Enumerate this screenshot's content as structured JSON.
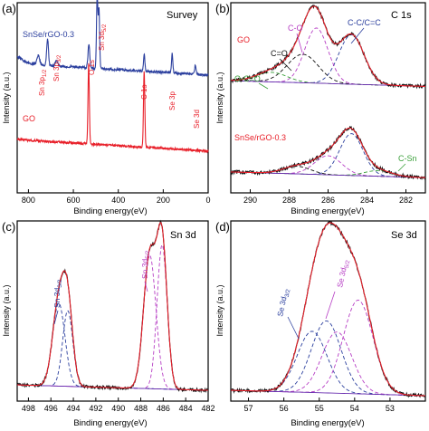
{
  "colors": {
    "red": "#e8202a",
    "blue": "#2b3f9e",
    "black": "#111111",
    "magenta": "#b63dc4",
    "green": "#3aa03a",
    "purple": "#6a2fb0"
  },
  "chart_data": [
    {
      "type": "line",
      "panel_label": "(a)",
      "title": "Survey",
      "xlabel": "Binding energy(eV)",
      "ylabel": "Intensity (a.u.)",
      "xlim": [
        0,
        850
      ],
      "x_reversed": true,
      "x_ticks": [
        "800",
        "600",
        "400",
        "200",
        "0"
      ],
      "series": [
        {
          "name": "SnSe/rGO-0.3",
          "color": "blue",
          "baseline": 0.62,
          "peaks": [
            {
              "x": 880,
              "h": 0.05,
              "w": 40
            },
            {
              "x": 756,
              "h": 0.05,
              "w": 6
            },
            {
              "x": 715,
              "h": 0.14,
              "w": 4
            },
            {
              "x": 675,
              "h": 0.025,
              "w": 6
            },
            {
              "x": 531,
              "h": 0.12,
              "w": 4
            },
            {
              "x": 494,
              "h": 0.38,
              "w": 3
            },
            {
              "x": 486,
              "h": 0.31,
              "w": 3
            },
            {
              "x": 285,
              "h": 0.09,
              "w": 3
            },
            {
              "x": 160,
              "h": 0.1,
              "w": 3
            },
            {
              "x": 57,
              "h": 0.05,
              "w": 3
            }
          ]
        },
        {
          "name": "GO",
          "color": "red",
          "baseline": 0.22,
          "peaks": [
            {
              "x": 980,
              "h": 0.04,
              "w": 60
            },
            {
              "x": 532,
              "h": 0.42,
              "w": 3
            },
            {
              "x": 285,
              "h": 0.4,
              "w": 3
            }
          ]
        }
      ],
      "annotations": [
        {
          "text": "SnSe/rGO-0.3",
          "color": "blue"
        },
        {
          "text": "GO",
          "color": "red"
        },
        {
          "text": "Sn 3p",
          "sub": "1/2",
          "color": "red",
          "x": 756
        },
        {
          "text": "Sn 3p",
          "sub": "3/2",
          "color": "red",
          "x": 715
        },
        {
          "text": "Sn 3d",
          "sub": "5/2",
          "color": "red",
          "x": 494
        },
        {
          "text": "O 1s",
          "color": "red",
          "x": 531
        },
        {
          "text": "C 1s",
          "color": "red",
          "x": 285
        },
        {
          "text": "Se 3p",
          "color": "red",
          "x": 160
        },
        {
          "text": "Se 3d",
          "color": "red",
          "x": 57
        }
      ]
    },
    {
      "type": "line",
      "panel_label": "(b)",
      "title": "C 1s",
      "xlabel": "Binding energy(eV)",
      "ylabel": "Intensity (a.u.)",
      "xlim": [
        281,
        291
      ],
      "x_reversed": true,
      "x_ticks": [
        "290",
        "288",
        "286",
        "284",
        "282"
      ],
      "upper": {
        "sample": "GO",
        "baseline": 0.56,
        "components": [
          {
            "name": "C-C/C=C",
            "center": 284.8,
            "height": 0.26,
            "width": 0.65
          },
          {
            "name": "C-O",
            "center": 286.6,
            "height": 0.29,
            "width": 0.6
          },
          {
            "name": "C=O",
            "center": 287.3,
            "height": 0.15,
            "width": 0.8
          },
          {
            "name": "O-C=O",
            "center": 288.9,
            "height": 0.05,
            "width": 0.8
          }
        ]
      },
      "lower": {
        "sample": "SnSe/rGO-0.3",
        "baseline": 0.08,
        "components": [
          {
            "name": "C-C/C=C",
            "center": 284.8,
            "height": 0.22,
            "width": 0.6
          },
          {
            "name": "C-O",
            "center": 286.0,
            "height": 0.1,
            "width": 0.7
          },
          {
            "name": "C=O",
            "center": 287.6,
            "height": 0.04,
            "width": 0.7
          },
          {
            "name": "C-Sn",
            "center": 283.4,
            "height": 0.03,
            "width": 0.7
          }
        ]
      },
      "annotations": [
        {
          "text": "GO",
          "color": "red"
        },
        {
          "text": "C-O",
          "color": "magenta"
        },
        {
          "text": "C-C/C=C",
          "color": "blue"
        },
        {
          "text": "C=O",
          "color": "black"
        },
        {
          "text": "O-C=O",
          "color": "green"
        },
        {
          "text": "SnSe/rGO-0.3",
          "color": "red"
        },
        {
          "text": "C-Sn",
          "color": "green"
        }
      ]
    },
    {
      "type": "line",
      "panel_label": "(c)",
      "title": "Sn 3d",
      "xlabel": "Binding energy(eV)",
      "ylabel": "Intensity (a.u.)",
      "xlim": [
        482,
        499
      ],
      "x_reversed": true,
      "x_ticks": [
        "498",
        "496",
        "494",
        "492",
        "490",
        "488",
        "486",
        "484",
        "482"
      ],
      "baseline": 0.06,
      "components": [
        {
          "name": "Sn 3d3/2 a",
          "center": 495.3,
          "height": 0.46,
          "width": 0.55
        },
        {
          "name": "Sn 3d3/2 b",
          "center": 494.5,
          "height": 0.42,
          "width": 0.45
        },
        {
          "name": "Sn 3d5/2 a",
          "center": 487.2,
          "height": 0.74,
          "width": 0.55
        },
        {
          "name": "Sn 3d5/2 b",
          "center": 486.1,
          "height": 0.8,
          "width": 0.45
        }
      ],
      "annotations": [
        {
          "text": "Sn 3d",
          "sub": "3/2",
          "color": "blue"
        },
        {
          "text": "Sn 3d",
          "sub": "5/2",
          "color": "magenta"
        }
      ]
    },
    {
      "type": "line",
      "panel_label": "(d)",
      "title": "Se 3d",
      "xlabel": "Binding energy(eV)",
      "ylabel": "Intensity (a.u.)",
      "xlim": [
        52,
        57.5
      ],
      "x_reversed": true,
      "x_ticks": [
        "57",
        "56",
        "55",
        "54",
        "53"
      ],
      "baseline": 0.03,
      "components": [
        {
          "name": "Se 3d3/2 a",
          "center": 55.2,
          "height": 0.34,
          "width": 0.42
        },
        {
          "name": "Se 3d3/2 b",
          "center": 54.8,
          "height": 0.4,
          "width": 0.42
        },
        {
          "name": "Se 3d5/2 a",
          "center": 54.5,
          "height": 0.34,
          "width": 0.42
        },
        {
          "name": "Se 3d5/2 b",
          "center": 53.9,
          "height": 0.52,
          "width": 0.42
        }
      ],
      "annotations": [
        {
          "text": "Se 3d",
          "sub": "3/2",
          "color": "blue"
        },
        {
          "text": "Se 3d",
          "sub": "5/2",
          "color": "magenta"
        }
      ]
    }
  ]
}
